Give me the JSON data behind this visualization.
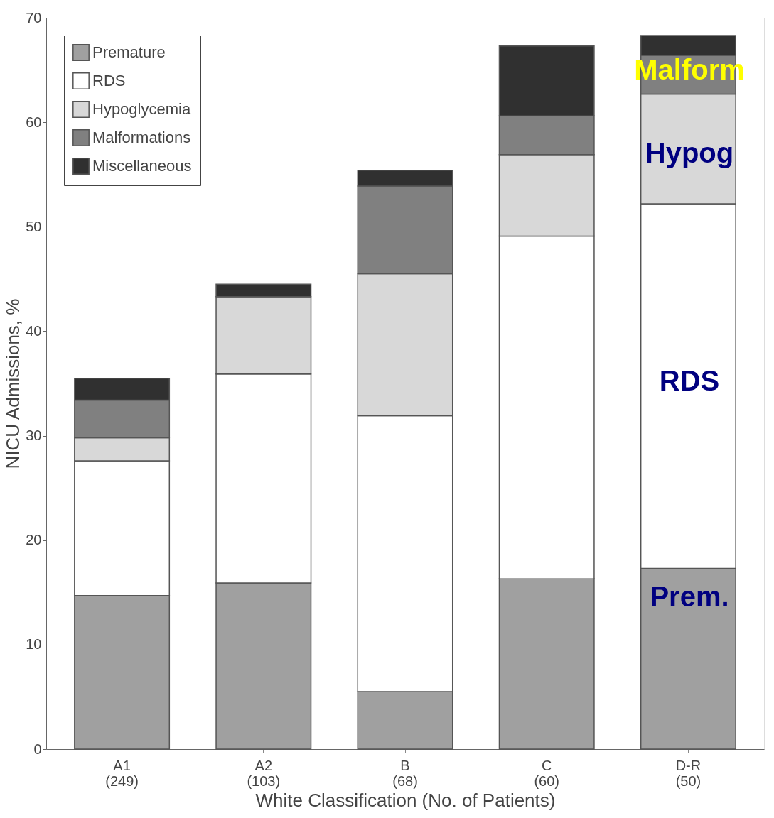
{
  "chart_data": {
    "type": "bar",
    "stacked": true,
    "xlabel": "White Classification (No. of Patients)",
    "ylabel": "NICU Admissions, %",
    "categories": [
      "A1\n(249)",
      "A2\n(103)",
      "B\n(68)",
      "C\n(60)",
      "D-R\n(50)"
    ],
    "series": [
      {
        "name": "Premature",
        "color": "#a0a0a0",
        "values": [
          14.7,
          15.9,
          5.5,
          16.3,
          17.3
        ]
      },
      {
        "name": "RDS",
        "color": "#ffffff",
        "values": [
          12.9,
          20.0,
          26.4,
          32.8,
          34.9
        ]
      },
      {
        "name": "Hypoglycemia",
        "color": "#d8d8d8",
        "values": [
          2.2,
          7.4,
          13.6,
          7.8,
          10.5
        ]
      },
      {
        "name": "Malformations",
        "color": "#808080",
        "values": [
          3.6,
          0,
          8.4,
          3.7,
          3.7
        ]
      },
      {
        "name": "Miscellaneous",
        "color": "#303030",
        "values": [
          2.1,
          1.2,
          1.5,
          6.7,
          1.9
        ]
      }
    ],
    "ylim": [
      0,
      70
    ],
    "yticks": [
      0,
      10,
      20,
      30,
      40,
      50,
      60,
      70
    ],
    "grid": false,
    "legend": "top left",
    "annotations": [
      "Malform",
      "Hypog",
      "RDS",
      "Prem."
    ]
  }
}
